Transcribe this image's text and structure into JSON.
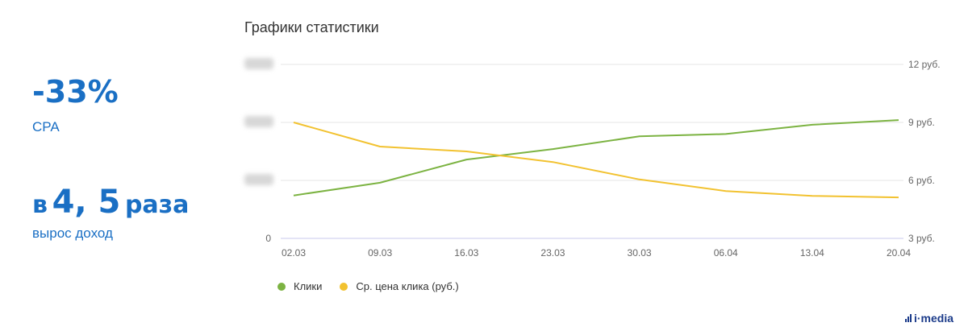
{
  "kpis": {
    "kpi1": {
      "value": "-33%",
      "label": "CPA"
    },
    "kpi2": {
      "prefix": "в",
      "value": "4, 5",
      "suffix": "раза",
      "label": "вырос доход"
    }
  },
  "chart_data": {
    "type": "line",
    "title": "Графики статистики",
    "categories": [
      "02.03",
      "09.03",
      "16.03",
      "23.03",
      "30.03",
      "06.04",
      "13.04",
      "20.04"
    ],
    "series": [
      {
        "name": "Клики",
        "axis": "left",
        "color": "#7cb342",
        "values": [
          0.37,
          0.48,
          0.68,
          0.77,
          0.88,
          0.9,
          0.98,
          1.02
        ]
      },
      {
        "name": "Ср. цена клика (руб.)",
        "axis": "right",
        "color": "#f2c230",
        "values": [
          9.0,
          7.75,
          7.5,
          6.95,
          6.05,
          5.45,
          5.2,
          5.12
        ]
      }
    ],
    "left_axis": {
      "ticks": [
        "0",
        "",
        "",
        ""
      ],
      "ylim": [
        0,
        1.5
      ],
      "labels_obscured": true
    },
    "right_axis": {
      "ticks": [
        "3 руб.",
        "6 руб.",
        "9 руб.",
        "12 руб."
      ],
      "tick_values": [
        3,
        6,
        9,
        12
      ],
      "ylim": [
        3,
        12
      ]
    },
    "grid": true,
    "legend_position": "bottom-left"
  },
  "brand": {
    "logo_text": "i·media"
  }
}
